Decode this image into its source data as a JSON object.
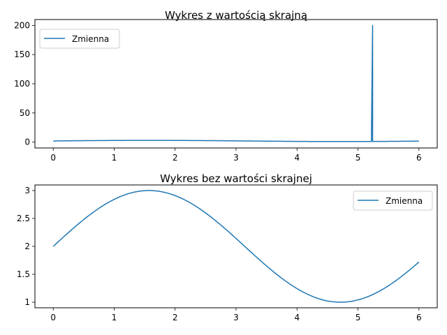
{
  "colors": {
    "series": "#1f77b4",
    "axes": "#000000",
    "legend_border": "#cccccc",
    "background": "#ffffff"
  },
  "chart_data": [
    {
      "type": "line",
      "title": "Wykres z wartością skrajną",
      "xlabel": "",
      "ylabel": "",
      "xlim": [
        -0.3,
        6.3
      ],
      "ylim": [
        -10,
        210
      ],
      "xticks": [
        0,
        1,
        2,
        3,
        4,
        5,
        6
      ],
      "yticks": [
        0,
        50,
        100,
        150,
        200
      ],
      "grid": false,
      "legend": {
        "position": "upper left",
        "entries": [
          "Zmienna"
        ]
      },
      "series": [
        {
          "name": "Zmienna",
          "color": "#1f77b4",
          "function": "2 + sin(x)",
          "x_range": [
            0,
            6
          ],
          "outlier": {
            "x": 5.24,
            "y": 200
          }
        }
      ]
    },
    {
      "type": "line",
      "title": "Wykres bez wartości skrajnej",
      "xlabel": "",
      "ylabel": "",
      "xlim": [
        -0.3,
        6.3
      ],
      "ylim": [
        0.9,
        3.1
      ],
      "xticks": [
        0,
        1,
        2,
        3,
        4,
        5,
        6
      ],
      "yticks": [
        1.0,
        1.5,
        2.0,
        2.5,
        3.0
      ],
      "grid": false,
      "legend": {
        "position": "upper right",
        "entries": [
          "Zmienna"
        ]
      },
      "series": [
        {
          "name": "Zmienna",
          "color": "#1f77b4",
          "function": "2 + sin(x)",
          "x_range": [
            0,
            6
          ]
        }
      ]
    }
  ]
}
